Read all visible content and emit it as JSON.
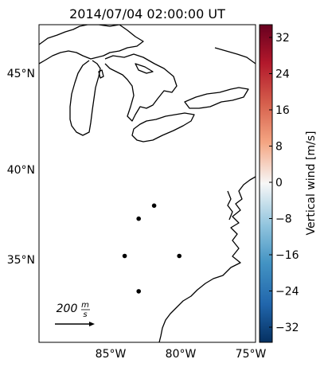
{
  "title": "2014/07/04 02:00:00 UT",
  "map": {
    "lat_labels": [
      "45°N",
      "40°N",
      "35°N"
    ],
    "lon_labels": [
      "85°W",
      "80°W",
      "75°W"
    ],
    "scale_label": "200",
    "scale_unit_num": "m",
    "scale_unit_den": "s",
    "stations": [
      {
        "lon": -83.0,
        "lat": 37.3
      },
      {
        "lon": -81.9,
        "lat": 38.0
      },
      {
        "lon": -84.0,
        "lat": 35.3
      },
      {
        "lon": -80.1,
        "lat": 35.3
      },
      {
        "lon": -83.0,
        "lat": 33.4
      }
    ]
  },
  "colorbar": {
    "label": "Vertical wind [m/s]",
    "ticks": [
      "32",
      "24",
      "16",
      "8",
      "0",
      "−8",
      "−16",
      "−24",
      "−32"
    ]
  }
}
